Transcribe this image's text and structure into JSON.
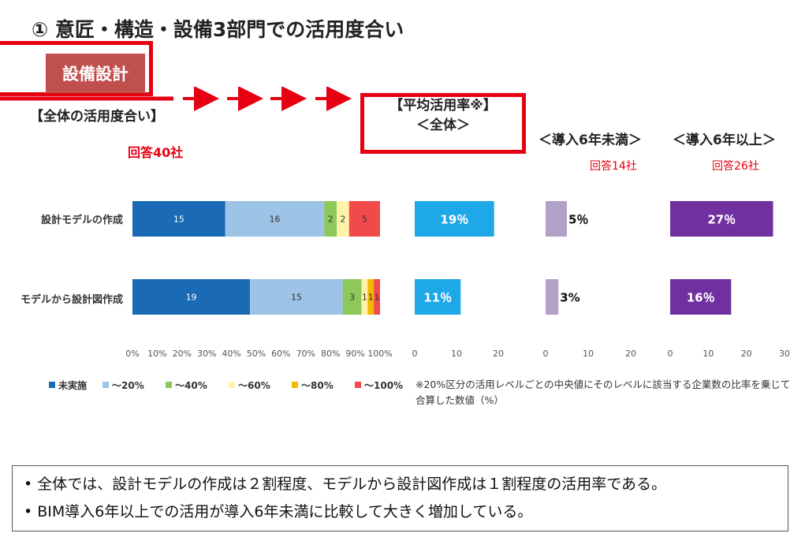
{
  "title": "① 意匠・構造・設備3部門での活用度合い",
  "badge": "設備設計",
  "left_section": {
    "label": "【全体の活用度合い】",
    "responses": "回答40社"
  },
  "avg_section": {
    "line1": "【平均活用率※】",
    "line2": "＜全体＞"
  },
  "lt6_section": {
    "label": "＜導入6年未満＞",
    "responses": "回答14社"
  },
  "ge6_section": {
    "label": "＜導入6年以上＞",
    "responses": "回答26社"
  },
  "row_labels": [
    "設計モデルの作成",
    "モデルから設計図作成"
  ],
  "note": "※20%区分の活用レベルごとの中央値にそのレベルに該当する企業数の比率を乗じて合算した数値（%）",
  "summary": [
    "全体では、設計モデルの作成は２割程度、モデルから設計図作成は１割程度の活用率である。",
    "BIM導入6年以上での活用が導入6年未満に比較して大きく増加している。"
  ],
  "colors": {
    "accent_red": "#e60012",
    "badge_bg": "#c0504d",
    "arrow": "#e60012"
  },
  "chart_data": [
    {
      "type": "bar",
      "orientation": "horizontal",
      "stacked": "percent",
      "title": "【全体の活用度合い】",
      "categories": [
        "設計モデルの作成",
        "モデルから設計図作成"
      ],
      "series": [
        {
          "name": "未実施",
          "color": "#1a6ab5",
          "values": [
            15,
            19
          ]
        },
        {
          "name": "～20%",
          "color": "#9dc3e6",
          "values": [
            16,
            15
          ]
        },
        {
          "name": "～40%",
          "color": "#8dc85a",
          "values": [
            2,
            3
          ]
        },
        {
          "name": "～60%",
          "color": "#fff3a8",
          "values": [
            2,
            1
          ]
        },
        {
          "name": "～80%",
          "color": "#f5b800",
          "values": [
            0,
            1
          ]
        },
        {
          "name": "～100%",
          "color": "#f04a4a",
          "values": [
            5,
            1
          ]
        }
      ],
      "xticks": [
        "0%",
        "10%",
        "20%",
        "30%",
        "40%",
        "50%",
        "60%",
        "70%",
        "80%",
        "90%",
        "100%"
      ],
      "xlim": [
        0,
        100
      ],
      "legend": "bottom"
    },
    {
      "type": "bar",
      "orientation": "horizontal",
      "title": "【平均活用率※】＜全体＞",
      "categories": [
        "設計モデルの作成",
        "モデルから設計図作成"
      ],
      "values": [
        19,
        11
      ],
      "labels": [
        "19％",
        "11％"
      ],
      "color": "#1ea8e8",
      "xlim": [
        0,
        20
      ],
      "xticks": [
        0,
        10,
        20
      ]
    },
    {
      "type": "bar",
      "orientation": "horizontal",
      "title": "＜導入6年未満＞",
      "categories": [
        "設計モデルの作成",
        "モデルから設計図作成"
      ],
      "values": [
        5,
        3
      ],
      "labels": [
        "5％",
        "3%"
      ],
      "color": "#b3a2c7",
      "xlim": [
        0,
        20
      ],
      "xticks": [
        0,
        10,
        20
      ]
    },
    {
      "type": "bar",
      "orientation": "horizontal",
      "title": "＜導入6年以上＞",
      "categories": [
        "設計モデルの作成",
        "モデルから設計図作成"
      ],
      "values": [
        27,
        16
      ],
      "labels": [
        "27％",
        "16％"
      ],
      "color": "#7030a0",
      "xlim": [
        0,
        30
      ],
      "xticks": [
        0,
        10,
        20,
        30
      ]
    }
  ]
}
